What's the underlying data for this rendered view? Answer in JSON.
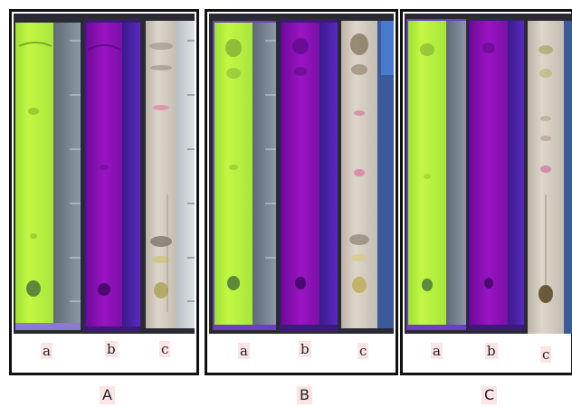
{
  "panels": [
    {
      "caption": "A",
      "labels": [
        "a",
        "b",
        "c"
      ]
    },
    {
      "caption": "B",
      "labels": [
        "a",
        "b",
        "c"
      ]
    },
    {
      "caption": "C",
      "labels": [
        "a",
        "b",
        "c"
      ]
    }
  ],
  "colors": {
    "uv254_plate": "#b8f23a",
    "uv365_plate": "#8a10b8",
    "stained_plate": "#d7cfc2",
    "ruler": "#7e8a96",
    "label_bg": "#fde4e4"
  }
}
